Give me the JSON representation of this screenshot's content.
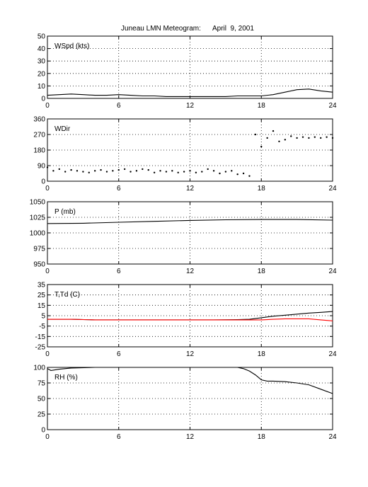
{
  "title": "Juneau LMN Meteogram:      April  9, 2001",
  "chart_data": [
    {
      "type": "line",
      "panel_label": "WSpd (kts)",
      "ylim": [
        0,
        50
      ],
      "yticks": [
        0,
        10,
        20,
        30,
        40,
        50
      ],
      "xlim": [
        0,
        24
      ],
      "xticks": [
        0,
        6,
        12,
        18,
        24
      ],
      "grid": true,
      "series": [
        {
          "color": "#000000",
          "style": "line",
          "x": [
            0,
            1,
            2,
            3,
            4,
            5,
            6,
            7,
            8,
            9,
            10,
            11,
            12,
            13,
            14,
            15,
            16,
            17,
            18,
            19,
            20,
            21,
            22,
            23,
            24
          ],
          "y": [
            2.5,
            3,
            3.5,
            3,
            2.5,
            2.5,
            3,
            2.5,
            2,
            2,
            1.5,
            1.5,
            1.5,
            1.5,
            1.5,
            1.5,
            2,
            2,
            2,
            3,
            5,
            7,
            7.5,
            6,
            5
          ]
        }
      ]
    },
    {
      "type": "scatter",
      "panel_label": "WDir",
      "ylim": [
        0,
        360
      ],
      "yticks": [
        0,
        90,
        180,
        270,
        360
      ],
      "xlim": [
        0,
        24
      ],
      "xticks": [
        0,
        6,
        12,
        18,
        24
      ],
      "grid": true,
      "series": [
        {
          "color": "#000000",
          "style": "dots",
          "x": [
            0,
            0.5,
            1,
            1.5,
            2,
            2.5,
            3,
            3.5,
            4,
            4.5,
            5,
            5.5,
            6,
            6.5,
            7,
            7.5,
            8,
            8.5,
            9,
            9.5,
            10,
            10.5,
            11,
            11.5,
            12,
            12.5,
            13,
            13.5,
            14,
            14.5,
            15,
            15.5,
            16,
            16.5,
            17,
            17.5,
            18,
            18.5,
            19,
            19.5,
            20,
            20.5,
            21,
            21.5,
            22,
            22.5,
            23,
            23.5,
            24
          ],
          "y": [
            80,
            60,
            70,
            55,
            65,
            60,
            55,
            50,
            60,
            65,
            55,
            60,
            65,
            70,
            55,
            60,
            70,
            65,
            50,
            60,
            55,
            60,
            50,
            55,
            60,
            50,
            55,
            70,
            60,
            45,
            55,
            60,
            40,
            45,
            30,
            270,
            200,
            250,
            290,
            230,
            240,
            260,
            250,
            255,
            250,
            255,
            250,
            255,
            250
          ]
        }
      ]
    },
    {
      "type": "line",
      "panel_label": "P (mb)",
      "ylim": [
        950,
        1050
      ],
      "yticks": [
        950,
        975,
        1000,
        1025,
        1050
      ],
      "xlim": [
        0,
        24
      ],
      "xticks": [
        0,
        6,
        12,
        18,
        24
      ],
      "grid": true,
      "series": [
        {
          "color": "#000000",
          "style": "line",
          "x": [
            0,
            3,
            6,
            9,
            12,
            15,
            18,
            21,
            24
          ],
          "y": [
            1015,
            1015.5,
            1017,
            1018.5,
            1020,
            1021,
            1021.5,
            1021.5,
            1020.5
          ]
        }
      ]
    },
    {
      "type": "line",
      "panel_label": "T,Td (C)",
      "ylim": [
        -25,
        35
      ],
      "yticks": [
        -25,
        -15,
        -5,
        5,
        15,
        25,
        35
      ],
      "xlim": [
        0,
        24
      ],
      "xticks": [
        0,
        6,
        12,
        18,
        24
      ],
      "grid": true,
      "series": [
        {
          "color": "#000000",
          "style": "line",
          "x": [
            0,
            2,
            4,
            6,
            8,
            10,
            12,
            14,
            16,
            17,
            18,
            19,
            20,
            21,
            22,
            23,
            24
          ],
          "y": [
            1.5,
            1.5,
            1,
            1,
            1,
            1,
            1,
            1,
            1.2,
            1.5,
            3,
            4.5,
            5.5,
            6.5,
            7.5,
            8.2,
            9
          ]
        },
        {
          "color": "#ff0000",
          "style": "line",
          "x": [
            0,
            2,
            4,
            6,
            8,
            10,
            12,
            14,
            16,
            17,
            18,
            19,
            20,
            21,
            22,
            23,
            24
          ],
          "y": [
            1.5,
            1.5,
            1,
            1,
            1,
            1,
            1,
            1,
            1,
            1,
            1,
            1.5,
            2,
            2,
            2,
            1,
            0
          ]
        }
      ]
    },
    {
      "type": "line",
      "panel_label": "RH (%)",
      "ylim": [
        0,
        100
      ],
      "yticks": [
        0,
        25,
        50,
        75,
        100
      ],
      "xlim": [
        0,
        24
      ],
      "xticks": [
        0,
        6,
        12,
        18,
        24
      ],
      "grid": true,
      "series": [
        {
          "color": "#000000",
          "style": "line",
          "x": [
            0,
            0.3,
            1,
            2,
            4,
            6,
            8,
            10,
            12,
            14,
            16,
            16.5,
            17,
            17.5,
            18,
            18.5,
            19,
            20,
            21,
            22,
            23,
            24
          ],
          "y": [
            98,
            95,
            97,
            99,
            100,
            100,
            100,
            100,
            100,
            100,
            100,
            98,
            94,
            88,
            80,
            78,
            78,
            77,
            75,
            72,
            65,
            58
          ]
        }
      ]
    }
  ]
}
